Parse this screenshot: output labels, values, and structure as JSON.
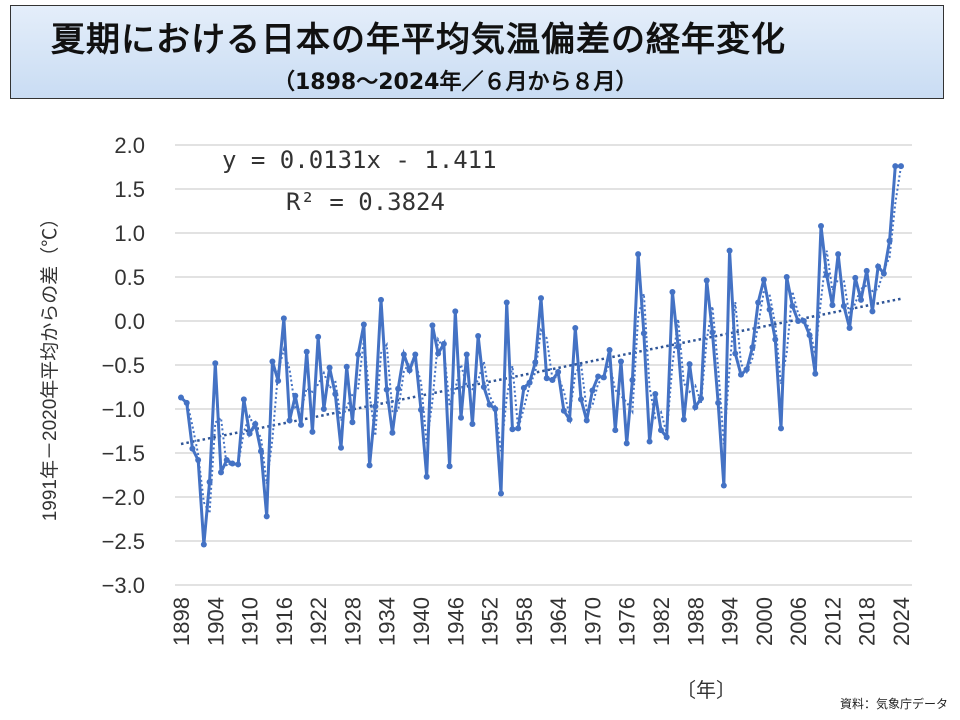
{
  "header": {
    "title": "夏期における日本の年平均気温偏差の経年変化",
    "subtitle": "（1898～2024年／６月から８月）"
  },
  "source": "資料：気象庁データ",
  "colors": {
    "series": "#4472c4",
    "grid": "#d9d9d9",
    "trend": "#2f5597"
  },
  "chart_data": {
    "type": "line",
    "title": "夏期における日本の年平均気温偏差の経年変化",
    "ylabel": "1991年－2020年平均からの差（℃）",
    "xlabel": "〔年〕",
    "ylim": [
      -3.0,
      2.0
    ],
    "yticks": [
      "2.0",
      "1.5",
      "1.0",
      "0.5",
      "0.0",
      "−0.5",
      "−1.0",
      "−1.5",
      "−2.0",
      "−2.5",
      "−3.0"
    ],
    "xticks": [
      "1898",
      "1904",
      "1910",
      "1916",
      "1922",
      "1928",
      "1934",
      "1940",
      "1946",
      "1952",
      "1958",
      "1964",
      "1970",
      "1976",
      "1982",
      "1988",
      "1994",
      "2000",
      "2006",
      "2012",
      "2018",
      "2024"
    ],
    "grid": true,
    "x_start": 1898,
    "values": [
      -0.87,
      -0.93,
      -1.45,
      -1.58,
      -2.54,
      -1.83,
      -0.48,
      -1.72,
      -1.58,
      -1.62,
      -1.63,
      -0.89,
      -1.28,
      -1.17,
      -1.48,
      -2.22,
      -0.46,
      -0.68,
      0.03,
      -1.13,
      -0.85,
      -1.18,
      -0.35,
      -1.26,
      -0.18,
      -1.0,
      -0.53,
      -0.83,
      -1.44,
      -0.52,
      -1.15,
      -0.38,
      -0.04,
      -1.64,
      -0.97,
      0.24,
      -0.78,
      -1.27,
      -0.77,
      -0.38,
      -0.56,
      -0.38,
      -1.01,
      -1.77,
      -0.05,
      -0.37,
      -0.26,
      -1.65,
      0.11,
      -1.1,
      -0.38,
      -1.17,
      -0.17,
      -0.75,
      -0.95,
      -1.0,
      -1.96,
      0.21,
      -1.23,
      -1.22,
      -0.76,
      -0.7,
      -0.47,
      0.26,
      -0.65,
      -0.67,
      -0.58,
      -1.02,
      -1.12,
      -0.08,
      -0.89,
      -1.13,
      -0.79,
      -0.63,
      -0.64,
      -0.33,
      -1.24,
      -0.46,
      -1.39,
      -0.67,
      0.76,
      -0.14,
      -1.37,
      -0.83,
      -1.24,
      -1.32,
      0.33,
      -0.29,
      -1.12,
      -0.49,
      -0.98,
      -0.88,
      0.46,
      -0.13,
      -0.93,
      -1.87,
      0.8,
      -0.37,
      -0.61,
      -0.55,
      -0.3,
      0.21,
      0.47,
      0.13,
      -0.21,
      -1.22,
      0.5,
      0.17,
      0.0,
      0.0,
      -0.16,
      -0.6,
      1.08,
      0.52,
      0.18,
      0.76,
      0.17,
      -0.08,
      0.49,
      0.24,
      0.57,
      0.11,
      0.62,
      0.54,
      0.91,
      1.76,
      1.76
    ],
    "trend": {
      "slope": 0.0131,
      "intercept": -1.411,
      "equation": "y = 0.0131x - 1.411",
      "r2": "R² = 0.3824"
    },
    "moving_average_window": 2
  }
}
